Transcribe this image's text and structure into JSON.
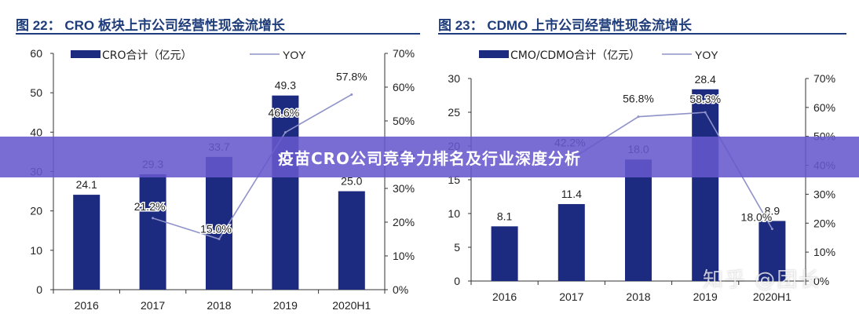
{
  "figures": [
    {
      "title": "图 22： CRO 板块上市公司经营性现金流增长"
    },
    {
      "title": "图 23： CDMO 上市公司经营性现金流增长"
    }
  ],
  "banner": {
    "text": "疫苗CRO公司竞争力排名及行业深度分析"
  },
  "watermark": {
    "text": "知乎 @团长"
  },
  "chart_data": [
    {
      "type": "bar",
      "categories": [
        "2016",
        "2017",
        "2018",
        "2019",
        "2020H1"
      ],
      "series": [
        {
          "name": "CRO合计（亿元）",
          "type": "bar",
          "axis": "left",
          "values": [
            24.1,
            29.3,
            33.7,
            49.3,
            25.0
          ],
          "labels": [
            "24.1",
            "29.3",
            "33.7",
            "49.3",
            "25.0"
          ]
        },
        {
          "name": "YOY",
          "type": "line",
          "axis": "right",
          "values": [
            null,
            21.2,
            15.0,
            46.6,
            57.8
          ],
          "labels": [
            "",
            "21.2%",
            "15.0%",
            "46.6%",
            "57.8%"
          ]
        }
      ],
      "left_axis": {
        "ylim": [
          0,
          60
        ],
        "ticks": [
          "0",
          "10",
          "20",
          "30",
          "40",
          "50",
          "60"
        ]
      },
      "right_axis": {
        "ylim": [
          0,
          70
        ],
        "ticks": [
          "0%",
          "10%",
          "20%",
          "30%",
          "40%",
          "50%",
          "60%",
          "70%"
        ]
      },
      "legend": "top",
      "grid": false,
      "colors": {
        "bar": "#1c2a80",
        "line": "#8e92c9"
      }
    },
    {
      "type": "bar",
      "categories": [
        "2016",
        "2017",
        "2018",
        "2019",
        "2020H1"
      ],
      "series": [
        {
          "name": "CMO/CDMO合计（亿元）",
          "type": "bar",
          "axis": "left",
          "values": [
            8.1,
            11.4,
            18.0,
            28.4,
            8.9
          ],
          "labels": [
            "8.1",
            "11.4",
            "18.0",
            "28.4",
            "8.9"
          ]
        },
        {
          "name": "YOY",
          "type": "line",
          "axis": "right",
          "values": [
            null,
            42.2,
            56.8,
            58.3,
            18.0
          ],
          "labels": [
            "",
            "42.2%",
            "56.8%",
            "58.3%",
            "18.0%"
          ]
        }
      ],
      "left_axis": {
        "ylim": [
          0,
          30
        ],
        "ticks": [
          "0",
          "5",
          "10",
          "15",
          "20",
          "25",
          "30"
        ]
      },
      "right_axis": {
        "ylim": [
          0,
          70
        ],
        "ticks": [
          "0%",
          "10%",
          "20%",
          "30%",
          "40%",
          "50%",
          "60%",
          "70%"
        ]
      },
      "legend": "top",
      "grid": false,
      "colors": {
        "bar": "#1c2a80",
        "line": "#8e92c9"
      }
    }
  ]
}
